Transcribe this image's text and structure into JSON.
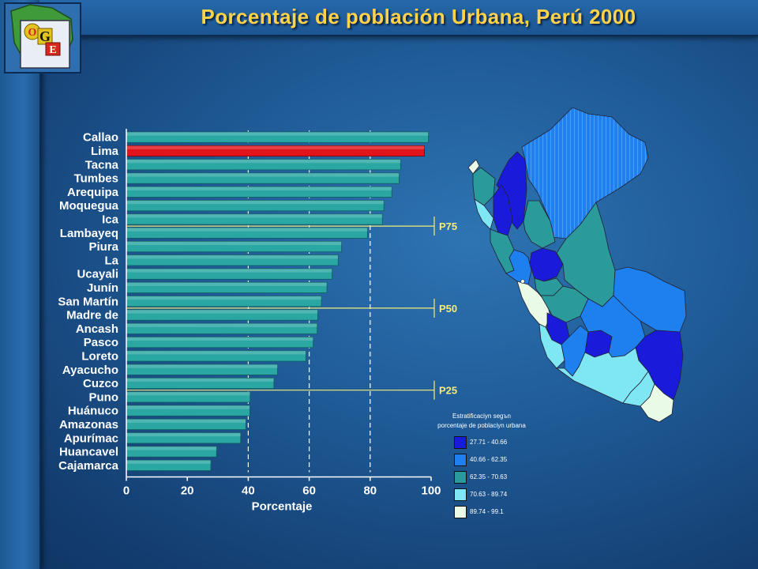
{
  "title": "Porcentaje de población Urbana, Perú 2000",
  "logo": {
    "letters": [
      "O",
      "G",
      "E"
    ]
  },
  "legend": {
    "title_line1": "Estratificaciуn segъn",
    "title_line2": "porcentaje de poblaciуn urbana",
    "items": [
      {
        "label": "27.71 - 40.66",
        "color": "#1a1adb"
      },
      {
        "label": "40.66 - 62.35",
        "color": "#1e80ee"
      },
      {
        "label": "62.35 - 70.63",
        "color": "#2a9a9a"
      },
      {
        "label": "70.63 - 89.74",
        "color": "#7fe6f4"
      },
      {
        "label": "89.74 - 99.1",
        "color": "#e9fbe6"
      }
    ]
  },
  "chart_data": {
    "type": "bar",
    "orientation": "horizontal",
    "categories": [
      "Callao",
      "Lima",
      "Tacna",
      "Tumbes",
      "Arequipa",
      "Moquegua",
      "Ica",
      "Lambayeq",
      "Piura",
      "La",
      "Ucayali",
      "Junín",
      "San Martín",
      "Madre de",
      "Ancash",
      "Pasco",
      "Loreto",
      "Ayacucho",
      "Cuzco",
      "Puno",
      "Huánuco",
      "Amazonas",
      "Apurímac",
      "Huancavel",
      "Cajamarca"
    ],
    "values": [
      99.1,
      97.8,
      90.0,
      89.5,
      87.1,
      84.5,
      84.0,
      79.1,
      70.6,
      69.5,
      67.5,
      65.8,
      64.0,
      62.8,
      62.6,
      61.3,
      58.9,
      49.6,
      48.4,
      40.6,
      40.5,
      39.2,
      37.5,
      29.6,
      27.7
    ],
    "highlight": "Lima",
    "bar_color": "#2aa7a3",
    "highlight_color": "#e0141a",
    "xlabel": "Porcentaje",
    "ylabel": "",
    "xlim": [
      0,
      100
    ],
    "xticks": [
      0,
      20,
      40,
      60,
      80,
      100
    ],
    "grid": "vertical dashed at 40, 60, 80",
    "percentile_lines": [
      {
        "label": "P75",
        "value": 84.0
      },
      {
        "label": "P50",
        "value": 64.0
      },
      {
        "label": "P25",
        "value": 48.4
      }
    ]
  }
}
